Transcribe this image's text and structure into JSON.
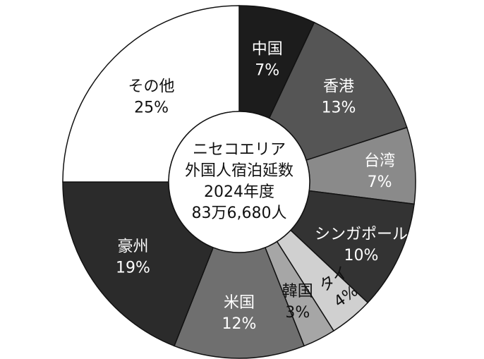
{
  "chart_data": {
    "type": "pie",
    "center_label": [
      "ニセコエリア",
      "外国人宿泊延数",
      "2024年度",
      "83万6,680人"
    ],
    "slices": [
      {
        "name": "中国",
        "label": "7%",
        "value": 7,
        "color": "#1c1c1c",
        "text_color": "#ffffff"
      },
      {
        "name": "香港",
        "label": "13%",
        "value": 13,
        "color": "#555555",
        "text_color": "#ffffff"
      },
      {
        "name": "台湾",
        "label": "7%",
        "value": 7,
        "color": "#8a8a8a",
        "text_color": "#ffffff"
      },
      {
        "name": "シンガポール",
        "label": "10%",
        "value": 10,
        "color": "#333333",
        "text_color": "#ffffff"
      },
      {
        "name": "タイ",
        "label": "4%",
        "value": 4,
        "color": "#d0d0d0",
        "text_color": "#111111"
      },
      {
        "name": "韓国",
        "label": "3%",
        "value": 3,
        "color": "#a6a6a6",
        "text_color": "#111111"
      },
      {
        "name": "米国",
        "label": "12%",
        "value": 12,
        "color": "#6f6f6f",
        "text_color": "#ffffff"
      },
      {
        "name": "豪州",
        "label": "19%",
        "value": 19,
        "color": "#2b2b2b",
        "text_color": "#ffffff"
      },
      {
        "name": "その他",
        "label": "25%",
        "value": 25,
        "color": "#ffffff",
        "text_color": "#111111"
      }
    ]
  }
}
